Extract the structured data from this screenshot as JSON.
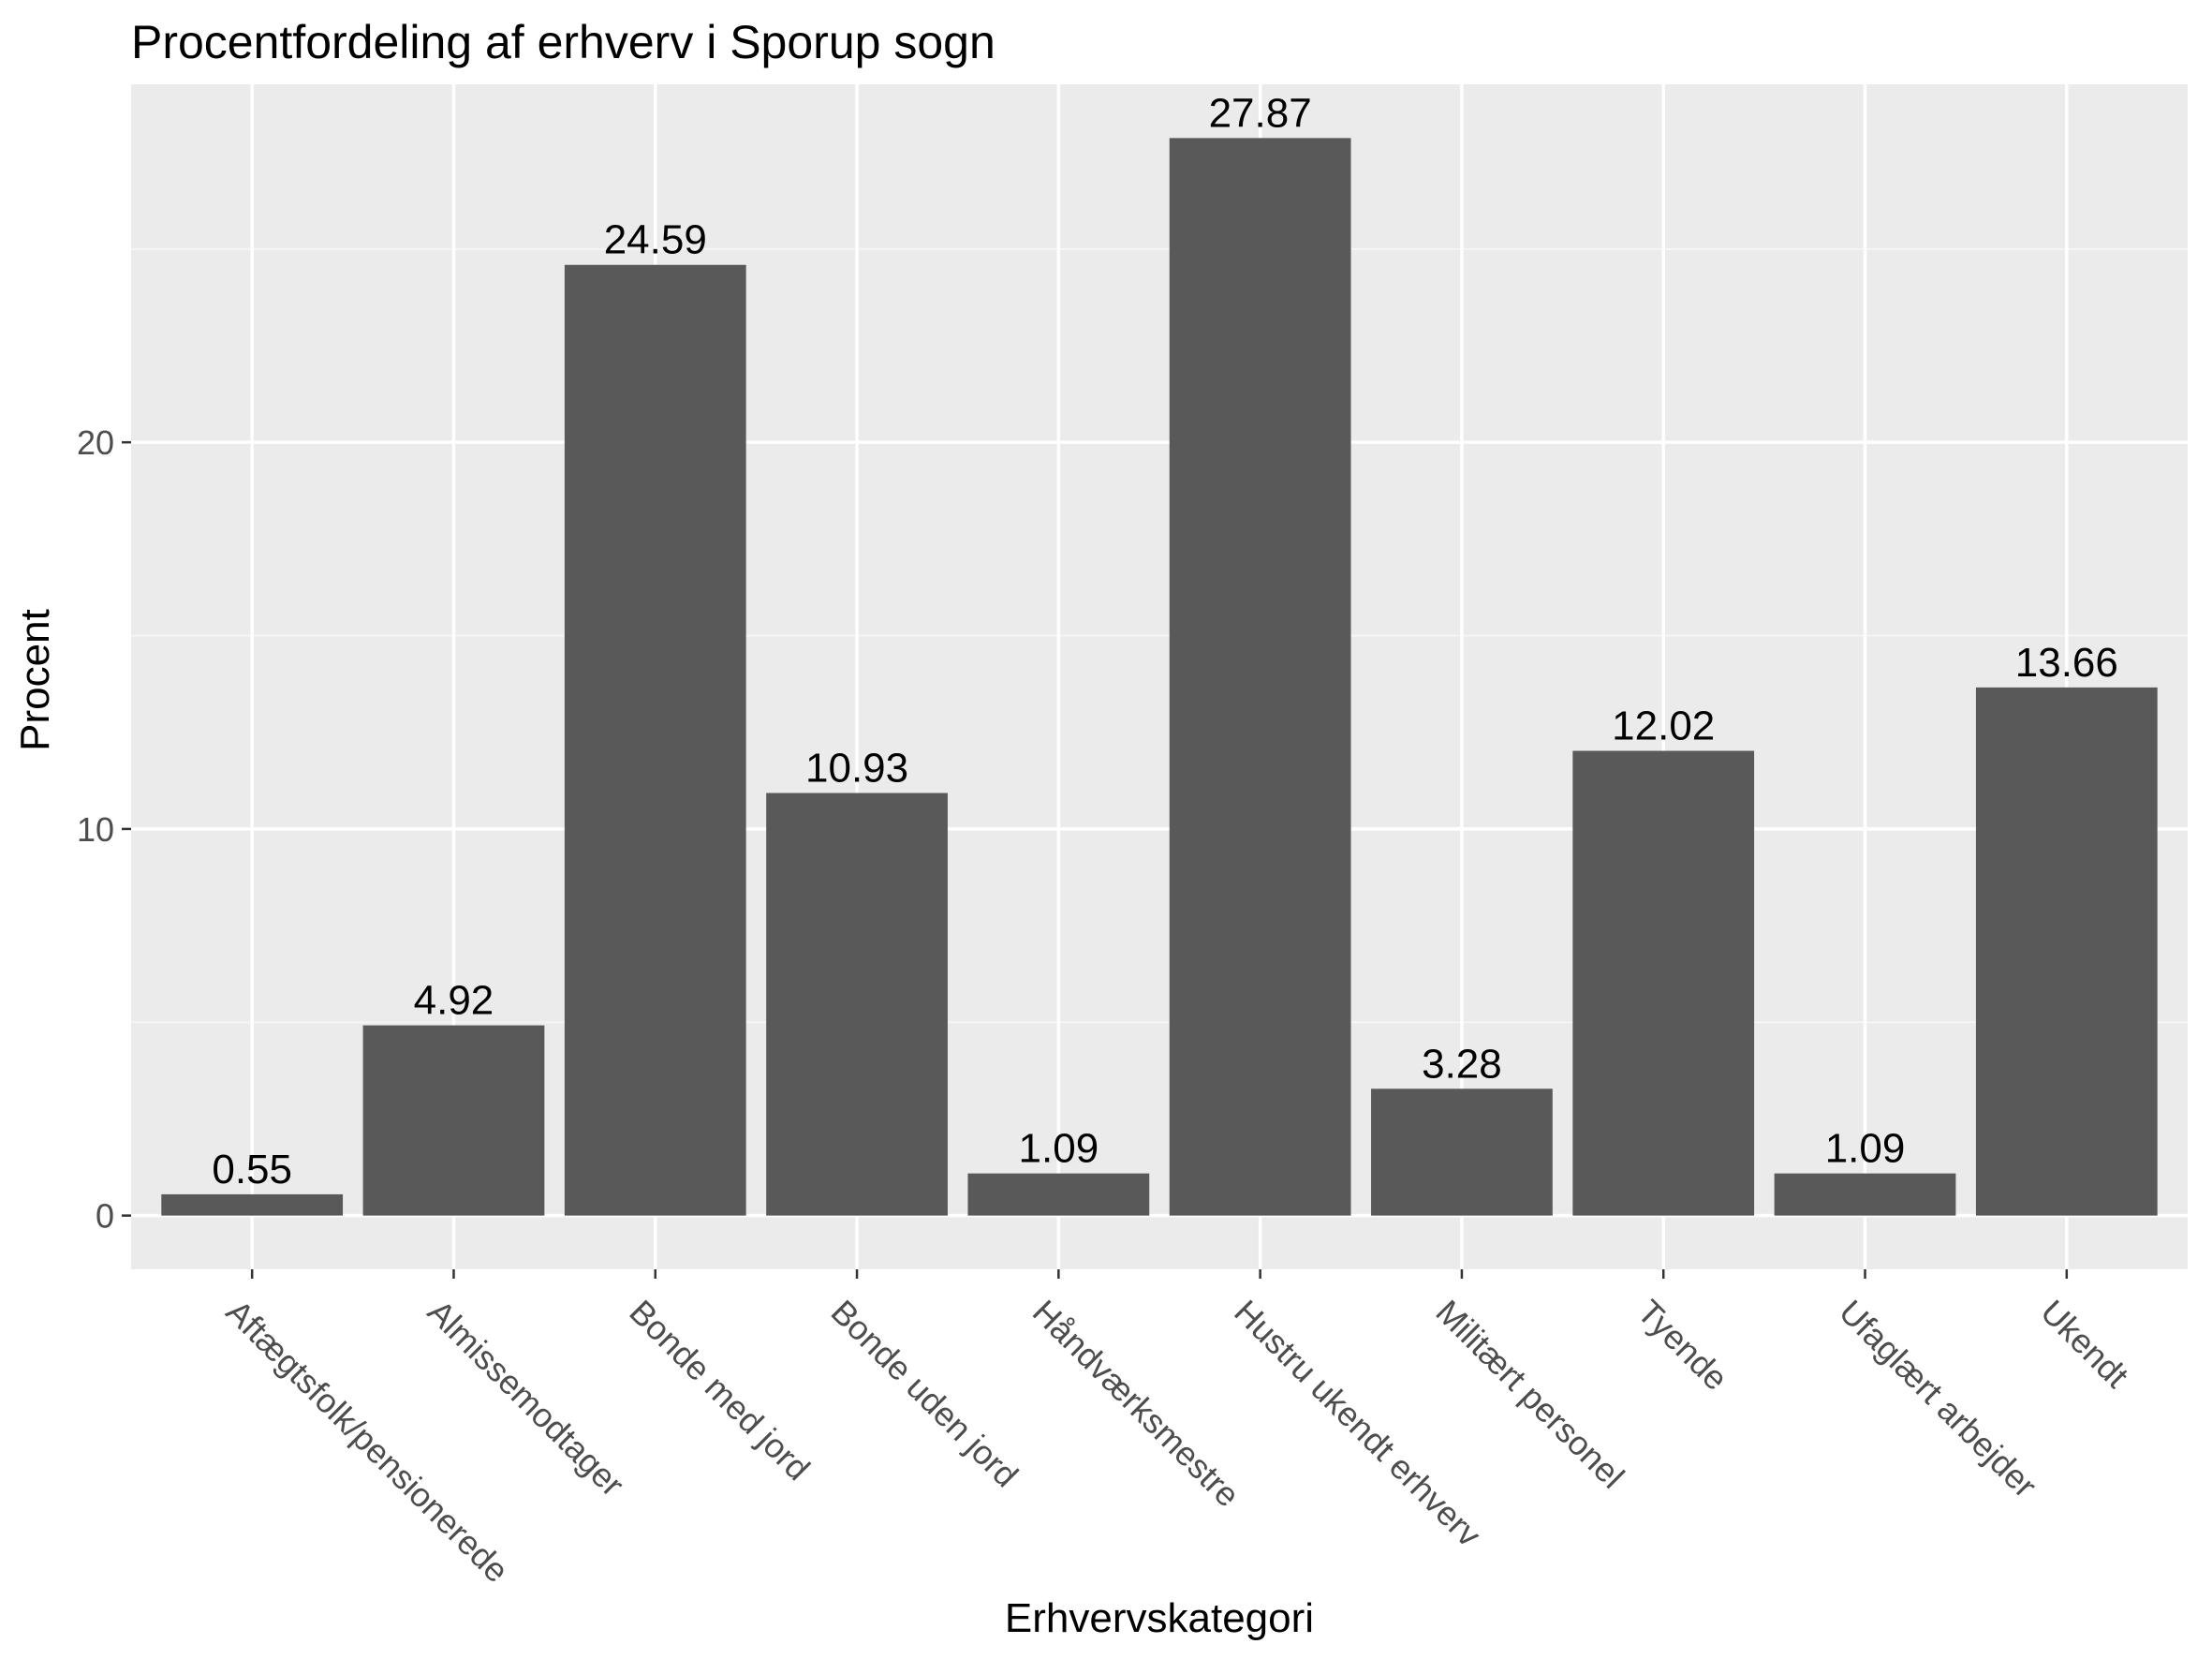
{
  "chart_data": {
    "type": "bar",
    "title": "Procentfordeling af erhverv i Sporup sogn",
    "xlabel": "Erhvervskategori",
    "ylabel": "Procent",
    "categories": [
      "Aftægtsfolk/pensionerede",
      "Almissemodtager",
      "Bonde med jord",
      "Bonde uden jord",
      "Håndværksmestre",
      "Hustru ukendt erhverv",
      "Militært personel",
      "Tyende",
      "Ufaglært arbejder",
      "Ukendt"
    ],
    "values": [
      0.55,
      4.92,
      24.59,
      10.93,
      1.09,
      27.87,
      3.28,
      12.02,
      1.09,
      13.66
    ],
    "data_labels": [
      "0.55",
      "4.92",
      "24.59",
      "10.93",
      "1.09",
      "27.87",
      "3.28",
      "12.02",
      "1.09",
      "13.66"
    ],
    "y_ticks": [
      0,
      10,
      20
    ],
    "y_tick_labels": [
      "0",
      "10",
      "20"
    ],
    "ylim": [
      -1.39,
      29.26
    ],
    "grid": true,
    "colors": {
      "bar": "#595959",
      "panel": "#ebebeb",
      "grid_major": "#ffffff",
      "grid_minor": "#f5f5f5",
      "tick_text": "#4d4d4d"
    }
  }
}
